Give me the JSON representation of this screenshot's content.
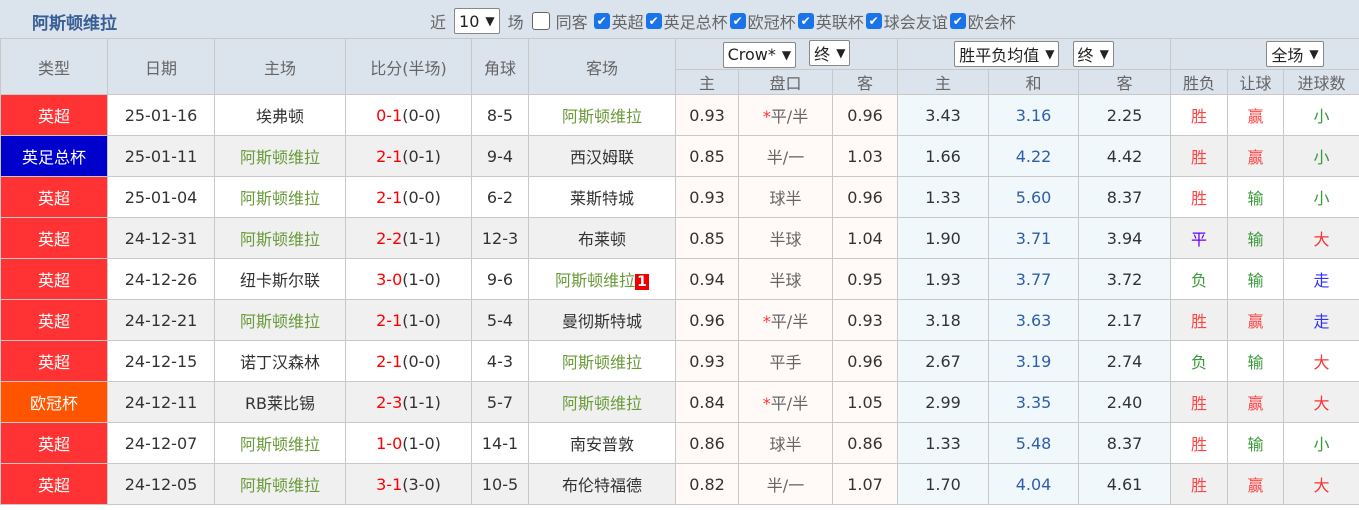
{
  "header": {
    "title": "阿斯顿维拉",
    "recent_prefix": "近",
    "recent_count": "10",
    "recent_suffix": "场",
    "same_host_label": "同客",
    "competitions": [
      {
        "label": "英超",
        "checked": true
      },
      {
        "label": "英足总杯",
        "checked": true
      },
      {
        "label": "欧冠杯",
        "checked": true
      },
      {
        "label": "英联杯",
        "checked": true
      },
      {
        "label": "球会友谊",
        "checked": true
      },
      {
        "label": "欧会杯",
        "checked": true
      }
    ]
  },
  "columns": {
    "type": "类型",
    "date": "日期",
    "home": "主场",
    "score": "比分(半场)",
    "corners": "角球",
    "away": "客场",
    "asian_company": "Crow*",
    "asian_stage": "终",
    "euro_company": "胜平负均值",
    "euro_stage": "终",
    "period": "全场",
    "asian_home": "主",
    "asian_line": "盘口",
    "asian_away": "客",
    "euro_home": "主",
    "euro_draw": "和",
    "euro_away": "客",
    "result": "胜负",
    "handicap": "让球",
    "goals": "进球数"
  },
  "colors": {
    "英超": "#ff3333",
    "英足总杯": "#0000cc",
    "欧冠杯": "#ff5500"
  },
  "rows": [
    {
      "type": "英超",
      "date": "25-01-16",
      "home": "埃弗顿",
      "home_is_team": false,
      "score": "0-1",
      "half": "(0-0)",
      "corners": "8-5",
      "away": "阿斯顿维拉",
      "away_is_team": true,
      "badge": "",
      "ah": "0.93",
      "line": "平/半",
      "star": true,
      "aa": "0.96",
      "eh": "3.43",
      "ed": "3.16",
      "ea": "2.25",
      "res": "胜",
      "hc": "赢",
      "goals": "小"
    },
    {
      "type": "英足总杯",
      "date": "25-01-11",
      "home": "阿斯顿维拉",
      "home_is_team": true,
      "score": "2-1",
      "half": "(0-1)",
      "corners": "9-4",
      "away": "西汉姆联",
      "away_is_team": false,
      "badge": "",
      "ah": "0.85",
      "line": "半/一",
      "star": false,
      "aa": "1.03",
      "eh": "1.66",
      "ed": "4.22",
      "ea": "4.42",
      "res": "胜",
      "hc": "赢",
      "goals": "小"
    },
    {
      "type": "英超",
      "date": "25-01-04",
      "home": "阿斯顿维拉",
      "home_is_team": true,
      "score": "2-1",
      "half": "(0-0)",
      "corners": "6-2",
      "away": "莱斯特城",
      "away_is_team": false,
      "badge": "",
      "ah": "0.93",
      "line": "球半",
      "star": false,
      "aa": "0.96",
      "eh": "1.33",
      "ed": "5.60",
      "ea": "8.37",
      "res": "胜",
      "hc": "输",
      "goals": "小"
    },
    {
      "type": "英超",
      "date": "24-12-31",
      "home": "阿斯顿维拉",
      "home_is_team": true,
      "score": "2-2",
      "half": "(1-1)",
      "corners": "12-3",
      "away": "布莱顿",
      "away_is_team": false,
      "badge": "",
      "ah": "0.85",
      "line": "半球",
      "star": false,
      "aa": "1.04",
      "eh": "1.90",
      "ed": "3.71",
      "ea": "3.94",
      "res": "平",
      "hc": "输",
      "goals": "大"
    },
    {
      "type": "英超",
      "date": "24-12-26",
      "home": "纽卡斯尔联",
      "home_is_team": false,
      "score": "3-0",
      "half": "(1-0)",
      "corners": "9-6",
      "away": "阿斯顿维拉",
      "away_is_team": true,
      "badge": "1",
      "ah": "0.94",
      "line": "半球",
      "star": false,
      "aa": "0.95",
      "eh": "1.93",
      "ed": "3.77",
      "ea": "3.72",
      "res": "负",
      "hc": "输",
      "goals": "走"
    },
    {
      "type": "英超",
      "date": "24-12-21",
      "home": "阿斯顿维拉",
      "home_is_team": true,
      "score": "2-1",
      "half": "(1-0)",
      "corners": "5-4",
      "away": "曼彻斯特城",
      "away_is_team": false,
      "badge": "",
      "ah": "0.96",
      "line": "平/半",
      "star": true,
      "aa": "0.93",
      "eh": "3.18",
      "ed": "3.63",
      "ea": "2.17",
      "res": "胜",
      "hc": "赢",
      "goals": "走"
    },
    {
      "type": "英超",
      "date": "24-12-15",
      "home": "诺丁汉森林",
      "home_is_team": false,
      "score": "2-1",
      "half": "(0-0)",
      "corners": "4-3",
      "away": "阿斯顿维拉",
      "away_is_team": true,
      "badge": "",
      "ah": "0.93",
      "line": "平手",
      "star": false,
      "aa": "0.96",
      "eh": "2.67",
      "ed": "3.19",
      "ea": "2.74",
      "res": "负",
      "hc": "输",
      "goals": "大"
    },
    {
      "type": "欧冠杯",
      "date": "24-12-11",
      "home": "RB莱比锡",
      "home_is_team": false,
      "score": "2-3",
      "half": "(1-1)",
      "corners": "5-7",
      "away": "阿斯顿维拉",
      "away_is_team": true,
      "badge": "",
      "ah": "0.84",
      "line": "平/半",
      "star": true,
      "aa": "1.05",
      "eh": "2.99",
      "ed": "3.35",
      "ea": "2.40",
      "res": "胜",
      "hc": "赢",
      "goals": "大"
    },
    {
      "type": "英超",
      "date": "24-12-07",
      "home": "阿斯顿维拉",
      "home_is_team": true,
      "score": "1-0",
      "half": "(1-0)",
      "corners": "14-1",
      "away": "南安普敦",
      "away_is_team": false,
      "badge": "",
      "ah": "0.86",
      "line": "球半",
      "star": false,
      "aa": "0.86",
      "eh": "1.33",
      "ed": "5.48",
      "ea": "8.37",
      "res": "胜",
      "hc": "输",
      "goals": "小"
    },
    {
      "type": "英超",
      "date": "24-12-05",
      "home": "阿斯顿维拉",
      "home_is_team": true,
      "score": "3-1",
      "half": "(3-0)",
      "corners": "10-5",
      "away": "布伦特福德",
      "away_is_team": false,
      "badge": "",
      "ah": "0.82",
      "line": "半/一",
      "star": false,
      "aa": "1.07",
      "eh": "1.70",
      "ed": "4.04",
      "ea": "4.61",
      "res": "胜",
      "hc": "赢",
      "goals": "大"
    }
  ]
}
